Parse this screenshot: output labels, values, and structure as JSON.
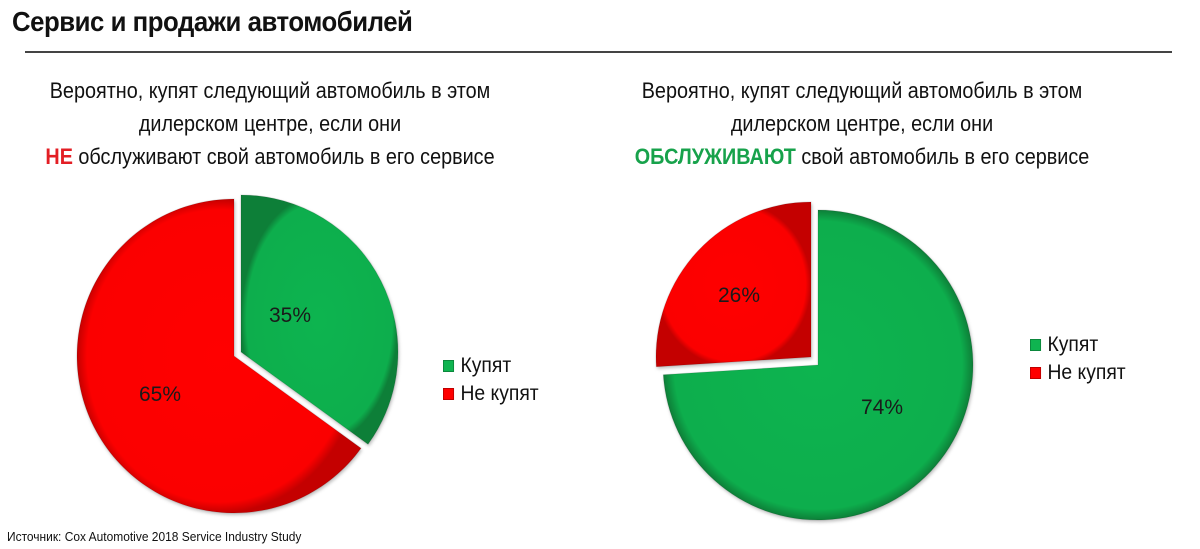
{
  "page": {
    "title": "Сервис и продажи автомобилей",
    "source": "Источник: Cox Automotive 2018 Service Industry Study"
  },
  "colors": {
    "buy": "#0fb450",
    "not_buy": "#ff0000",
    "highlight_red": "#e31e24",
    "highlight_green": "#17a24b"
  },
  "left_panel": {
    "subtitle_line1": "Вероятно, купят следующий автомобиль в этом",
    "subtitle_line2": "дилерском центре, если они",
    "subtitle_highlight": "НЕ",
    "subtitle_line3_rest": " обслуживают свой автомобиль в его сервисе",
    "labels": {
      "buy": "35%",
      "not_buy": "65%"
    },
    "legend": {
      "buy": "Купят",
      "not_buy": "Не купят"
    }
  },
  "right_panel": {
    "subtitle_line1": "Вероятно, купят следующий автомобиль в этом",
    "subtitle_line2": "дилерском центре, если они",
    "subtitle_highlight": "ОБСЛУЖИВАЮТ",
    "subtitle_line3_rest": " свой автомобиль в его сервисе",
    "labels": {
      "buy": "74%",
      "not_buy": "26%"
    },
    "legend": {
      "buy": "Купят",
      "not_buy": "Не купят"
    }
  },
  "chart_data": [
    {
      "type": "pie",
      "title": "Вероятно, купят следующий автомобиль в этом дилерском центре, если они НЕ обслуживают свой автомобиль в его сервисе",
      "categories": [
        "Купят",
        "Не купят"
      ],
      "values": [
        35,
        65
      ],
      "unit": "%",
      "colors": [
        "#0fb450",
        "#ff0000"
      ],
      "exploded": [
        "Купят"
      ],
      "legend_position": "right"
    },
    {
      "type": "pie",
      "title": "Вероятно, купят следующий автомобиль в этом дилерском центре, если они ОБСЛУЖИВАЮТ свой автомобиль в его сервисе",
      "categories": [
        "Купят",
        "Не купят"
      ],
      "values": [
        74,
        26
      ],
      "unit": "%",
      "colors": [
        "#0fb450",
        "#ff0000"
      ],
      "exploded": [
        "Не купят"
      ],
      "legend_position": "right"
    }
  ]
}
